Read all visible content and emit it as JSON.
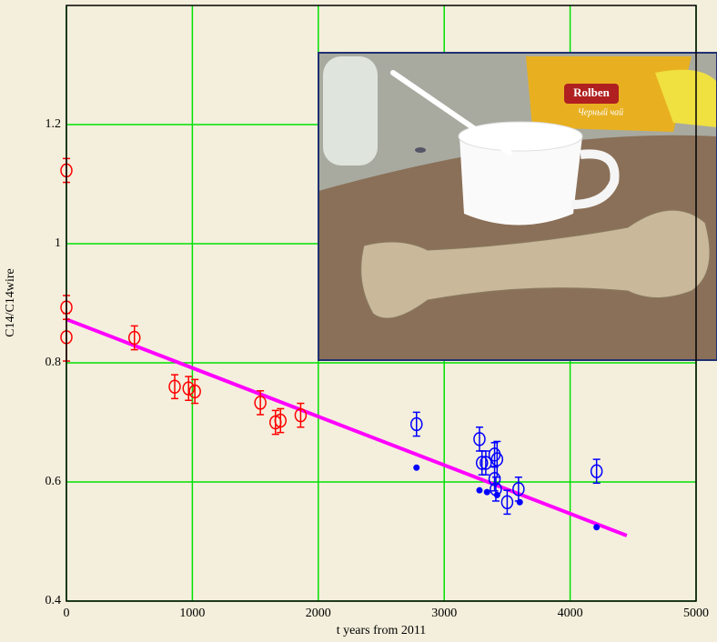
{
  "chart_data": {
    "type": "scatter",
    "xlabel": "t years from 2011",
    "ylabel": "C14/C14wire",
    "xlim": [
      0,
      5000
    ],
    "ylim": [
      0.4,
      1.4
    ],
    "xticks": [
      0,
      1000,
      2000,
      3000,
      4000,
      5000
    ],
    "yticks": [
      0.4,
      0.6,
      0.8,
      1,
      1.2
    ],
    "grid": true,
    "grid_color": "#00e000",
    "series": [
      {
        "color": "#ff0000",
        "marker": "circle",
        "x": [
          0,
          0,
          0,
          540,
          860,
          970,
          1020,
          1540,
          1660,
          1700,
          1860
        ],
        "values": [
          1.123,
          0.893,
          0.843,
          0.842,
          0.76,
          0.757,
          0.752,
          0.733,
          0.7,
          0.703,
          0.712
        ],
        "errors": [
          0.02,
          0.02,
          0.04,
          0.02,
          0.02,
          0.02,
          0.02,
          0.02,
          0.02,
          0.02,
          0.02
        ]
      },
      {
        "color": "#0000ff",
        "marker": "circle",
        "x": [
          2780,
          3280,
          3300,
          3330,
          3400,
          3420,
          3400,
          3410,
          3500,
          3590,
          4210
        ],
        "values": [
          0.697,
          0.672,
          0.632,
          0.632,
          0.646,
          0.638,
          0.605,
          0.588,
          0.566,
          0.588,
          0.618
        ],
        "errors": [
          0.02,
          0.02,
          0.02,
          0.02,
          0.02,
          0.03,
          0.02,
          0.02,
          0.02,
          0.02,
          0.02
        ]
      },
      {
        "color": "#ff00ff",
        "marker": "line",
        "x": [
          0,
          4450
        ],
        "values": [
          0.873,
          0.51
        ]
      },
      {
        "color": "#0000ff",
        "marker": "dot",
        "x": [
          2780,
          3280,
          3340,
          3420,
          3600,
          4210
        ],
        "values": [
          0.624,
          0.586,
          0.583,
          0.578,
          0.566,
          0.524
        ]
      }
    ]
  },
  "photo": {
    "brand": "Rolben",
    "label": "Черный чай"
  }
}
